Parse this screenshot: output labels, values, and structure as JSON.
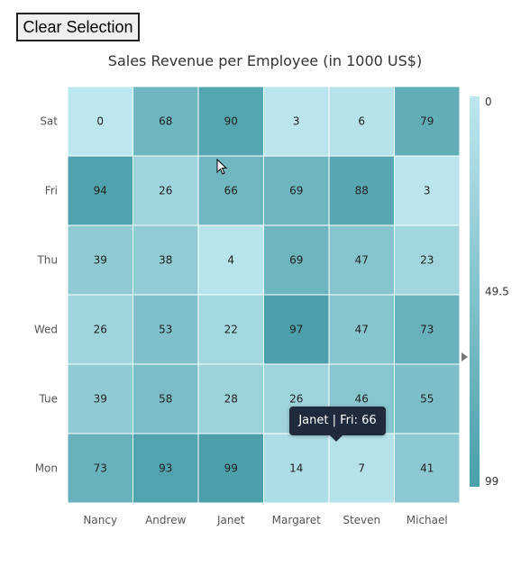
{
  "toolbar": {
    "clear_label": "Clear Selection"
  },
  "tooltip": {
    "text": "Janet | Fri: 66"
  },
  "colors": {
    "low": "#bde7ee",
    "high": "#4a9fab",
    "grid": "#ffffff",
    "text": "#333333"
  },
  "chart_data": {
    "type": "heatmap",
    "title": "Sales Revenue per Employee (in 1000 US$)",
    "x_categories": [
      "Nancy",
      "Andrew",
      "Janet",
      "Margaret",
      "Steven",
      "Michael"
    ],
    "y_categories": [
      "Sat",
      "Fri",
      "Thu",
      "Wed",
      "Tue",
      "Mon"
    ],
    "values": [
      [
        0,
        68,
        90,
        3,
        6,
        79
      ],
      [
        94,
        26,
        66,
        69,
        88,
        3
      ],
      [
        39,
        38,
        4,
        69,
        47,
        23
      ],
      [
        26,
        53,
        22,
        97,
        47,
        73
      ],
      [
        39,
        58,
        28,
        26,
        46,
        55
      ],
      [
        73,
        93,
        99,
        14,
        7,
        41
      ]
    ],
    "legend": {
      "position": "right",
      "labels": [
        "0",
        "49.5",
        "99"
      ],
      "min": 0,
      "max": 99
    }
  }
}
